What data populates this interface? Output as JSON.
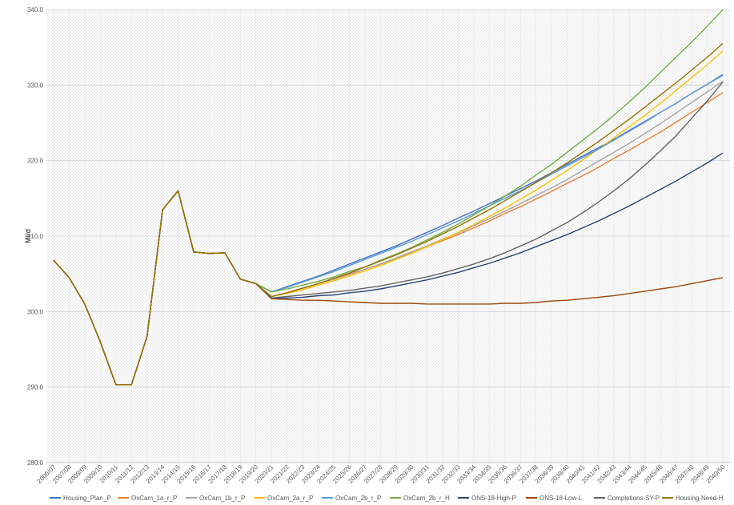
{
  "chart_data": {
    "type": "line",
    "y_label": "Ml/d",
    "categories": [
      "2006/07",
      "2007/08",
      "2008/09",
      "2009/10",
      "2010/11",
      "2011/12",
      "2012/13",
      "2013/14",
      "2014/15",
      "2015/16",
      "2016/17",
      "2017/18",
      "2018/19",
      "2019/20",
      "2020/21",
      "2021/22",
      "2022/23",
      "2023/24",
      "2024/25",
      "2025/26",
      "2026/27",
      "2027/28",
      "2028/29",
      "2029/30",
      "2030/31",
      "2031/32",
      "2032/33",
      "2033/34",
      "2034/35",
      "2035/36",
      "2036/37",
      "2037/38",
      "2038/39",
      "2039/40",
      "2040/41",
      "2041/42",
      "2042/43",
      "2043/44",
      "2044/45",
      "2045/46",
      "2046/47",
      "2047/48",
      "2048/49",
      "2049/50"
    ],
    "ylim": [
      280,
      340
    ],
    "yticks": [
      {
        "value": 280,
        "label": "280.0"
      },
      {
        "value": 290,
        "label": "290.0"
      },
      {
        "value": 300,
        "label": "300.0"
      },
      {
        "value": 310,
        "label": "310.0"
      },
      {
        "value": 320,
        "label": "320.0"
      },
      {
        "value": 330,
        "label": "330.0"
      },
      {
        "value": 340,
        "label": "340.0"
      }
    ],
    "grid": true,
    "legend": "bottom",
    "series": [
      {
        "name": "Housing_Plan_P",
        "color": "#4472c4",
        "values": [
          306.8,
          304.5,
          301.0,
          296.0,
          290.3,
          290.3,
          296.7,
          313.5,
          316.0,
          307.9,
          307.7,
          307.8,
          304.3,
          303.7,
          302.6,
          303.3,
          304.0,
          304.7,
          305.5,
          306.3,
          307.1,
          307.9,
          308.7,
          309.6,
          310.5,
          311.4,
          312.4,
          313.3,
          314.3,
          315.3,
          316.3,
          317.3,
          318.4,
          319.5,
          320.6,
          321.7,
          322.8,
          324.0,
          325.2,
          326.4,
          327.6,
          328.9,
          330.1,
          331.4
        ]
      },
      {
        "name": "OxCam_1a_r_P",
        "color": "#ed7d31",
        "values": [
          306.8,
          304.5,
          301.0,
          296.0,
          290.3,
          290.3,
          296.7,
          313.5,
          316.0,
          307.9,
          307.7,
          307.8,
          304.3,
          303.7,
          302.0,
          302.5,
          303.1,
          303.7,
          304.3,
          304.9,
          305.6,
          306.3,
          307.0,
          307.8,
          308.6,
          309.4,
          310.2,
          311.1,
          312.0,
          313.0,
          313.9,
          314.9,
          315.9,
          317.0,
          318.0,
          319.1,
          320.3,
          321.4,
          322.6,
          323.8,
          325.1,
          326.4,
          327.7,
          329.0
        ]
      },
      {
        "name": "OxCam_1b_r_P",
        "color": "#a5a5a5",
        "values": [
          306.8,
          304.5,
          301.0,
          296.0,
          290.3,
          290.3,
          296.7,
          313.5,
          316.0,
          307.9,
          307.7,
          307.8,
          304.3,
          303.7,
          302.0,
          302.5,
          303.1,
          303.7,
          304.3,
          305.0,
          305.6,
          306.3,
          307.1,
          307.9,
          308.7,
          309.6,
          310.4,
          311.4,
          312.3,
          313.3,
          314.3,
          315.4,
          316.4,
          317.5,
          318.7,
          319.9,
          321.1,
          322.3,
          323.6,
          324.9,
          326.3,
          327.7,
          329.1,
          330.5
        ]
      },
      {
        "name": "OxCam_2a_r_P",
        "color": "#ffc000",
        "values": [
          306.8,
          304.5,
          301.0,
          296.0,
          290.3,
          290.3,
          296.7,
          313.5,
          316.0,
          307.9,
          307.7,
          307.8,
          304.3,
          303.7,
          302.0,
          302.4,
          302.9,
          303.5,
          304.1,
          304.7,
          305.4,
          306.1,
          306.9,
          307.7,
          308.6,
          309.5,
          310.5,
          311.5,
          312.6,
          313.7,
          314.9,
          316.1,
          317.4,
          318.7,
          320.1,
          321.5,
          323.0,
          324.5,
          326.0,
          327.6,
          329.3,
          331.0,
          332.7,
          334.5
        ]
      },
      {
        "name": "OxCam_2b_r_P",
        "color": "#5b9bd5",
        "values": [
          306.8,
          304.5,
          301.0,
          296.0,
          290.3,
          290.3,
          296.7,
          313.5,
          316.0,
          307.9,
          307.7,
          307.8,
          304.3,
          303.7,
          302.6,
          303.2,
          303.9,
          304.6,
          305.3,
          306.1,
          306.9,
          307.7,
          308.5,
          309.3,
          310.2,
          311.1,
          312.0,
          313.0,
          314.0,
          315.0,
          316.0,
          317.1,
          318.2,
          319.3,
          320.4,
          321.5,
          322.7,
          323.9,
          325.1,
          326.4,
          327.6,
          328.9,
          330.1,
          331.3
        ]
      },
      {
        "name": "OxCam_2b_r_H",
        "color": "#70ad47",
        "values": [
          306.8,
          304.5,
          301.0,
          296.0,
          290.3,
          290.3,
          296.7,
          313.5,
          316.0,
          307.9,
          307.7,
          307.8,
          304.3,
          303.7,
          302.6,
          303.0,
          303.5,
          304.0,
          304.6,
          305.3,
          305.9,
          306.8,
          307.6,
          308.5,
          309.5,
          310.5,
          311.6,
          312.8,
          314.0,
          315.3,
          316.6,
          318.1,
          319.5,
          321.1,
          322.7,
          324.3,
          326.0,
          327.8,
          329.7,
          331.7,
          333.7,
          335.7,
          337.8,
          340.0
        ]
      },
      {
        "name": "ONS-18-High-P",
        "color": "#264478",
        "values": [
          306.8,
          304.5,
          301.0,
          296.0,
          290.3,
          290.3,
          296.7,
          313.5,
          316.0,
          307.9,
          307.7,
          307.8,
          304.3,
          303.7,
          301.8,
          301.8,
          301.9,
          302.1,
          302.2,
          302.5,
          302.7,
          303.0,
          303.4,
          303.8,
          304.2,
          304.7,
          305.2,
          305.8,
          306.4,
          307.1,
          307.8,
          308.6,
          309.4,
          310.2,
          311.1,
          312.0,
          313.0,
          314.0,
          315.1,
          316.2,
          317.3,
          318.5,
          319.7,
          321.0
        ]
      },
      {
        "name": "ONS-18-Low-L",
        "color": "#9e480e",
        "values": [
          306.8,
          304.5,
          301.0,
          296.0,
          290.3,
          290.3,
          296.7,
          313.5,
          316.0,
          307.9,
          307.7,
          307.8,
          304.3,
          303.7,
          301.7,
          301.6,
          301.5,
          301.5,
          301.4,
          301.3,
          301.2,
          301.1,
          301.1,
          301.1,
          301.0,
          301.0,
          301.0,
          301.0,
          301.0,
          301.1,
          301.1,
          301.2,
          301.4,
          301.5,
          301.7,
          301.9,
          302.1,
          302.4,
          302.7,
          303.0,
          303.3,
          303.7,
          304.1,
          304.5
        ]
      },
      {
        "name": "Completions-SY-P",
        "color": "#636363",
        "values": [
          306.8,
          304.5,
          301.0,
          296.0,
          290.3,
          290.3,
          296.7,
          313.5,
          316.0,
          307.9,
          307.7,
          307.8,
          304.3,
          303.7,
          301.8,
          302.0,
          302.2,
          302.4,
          302.6,
          302.8,
          303.1,
          303.4,
          303.8,
          304.2,
          304.6,
          305.1,
          305.7,
          306.3,
          307.0,
          307.8,
          308.7,
          309.6,
          310.7,
          311.8,
          313.1,
          314.5,
          316.0,
          317.6,
          319.4,
          321.3,
          323.3,
          325.6,
          327.9,
          330.4
        ]
      },
      {
        "name": "Housing-Need-H",
        "color": "#997300",
        "values": [
          306.8,
          304.5,
          301.0,
          296.0,
          290.3,
          290.3,
          296.7,
          313.5,
          316.0,
          307.9,
          307.7,
          307.8,
          304.3,
          303.7,
          302.0,
          302.5,
          303.1,
          303.7,
          304.4,
          305.1,
          305.9,
          306.7,
          307.5,
          308.4,
          309.3,
          310.3,
          311.3,
          312.4,
          313.5,
          314.7,
          315.9,
          317.1,
          318.4,
          319.7,
          321.1,
          322.5,
          324.0,
          325.5,
          327.1,
          328.7,
          330.3,
          332.0,
          333.7,
          335.5
        ]
      }
    ]
  }
}
